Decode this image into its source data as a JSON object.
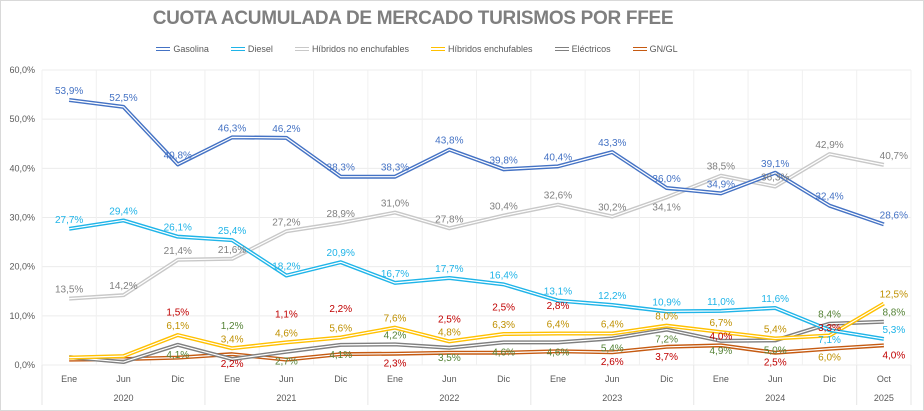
{
  "chart_data": {
    "type": "line",
    "title": "CUOTA ACUMULADA DE MERCADO TURISMOS POR FFEE",
    "xlabel": "",
    "ylabel": "",
    "ylim": [
      0,
      60
    ],
    "yticks": [
      "0,0%",
      "10,0%",
      "20,0%",
      "30,0%",
      "40,0%",
      "50,0%",
      "60,0%"
    ],
    "ytick_values": [
      0,
      10,
      20,
      30,
      40,
      50,
      60
    ],
    "grid": true,
    "legend_position": "top",
    "categories": [
      "Ene",
      "Jun",
      "Dic",
      "Ene",
      "Jun",
      "Dic",
      "Ene",
      "Jun",
      "Dic",
      "Ene",
      "Jun",
      "Dic",
      "Ene",
      "Jun",
      "Dic",
      "Oct"
    ],
    "years": [
      {
        "label": "2020",
        "span": 3
      },
      {
        "label": "2021",
        "span": 3
      },
      {
        "label": "2022",
        "span": 3
      },
      {
        "label": "2023",
        "span": 3
      },
      {
        "label": "2024",
        "span": 3
      },
      {
        "label": "2025",
        "span": 1
      }
    ],
    "series": [
      {
        "name": "Gasolina",
        "color": "#4472c4",
        "label_color": "#4472c4",
        "values": [
          53.9,
          52.5,
          40.8,
          46.3,
          46.2,
          38.3,
          38.3,
          43.8,
          39.8,
          40.4,
          43.3,
          36.0,
          34.9,
          39.1,
          32.4,
          28.6
        ],
        "labels": [
          "53,9%",
          "52,5%",
          "40,8%",
          "46,3%",
          "46,2%",
          "38,3%",
          "38,3%",
          "43,8%",
          "39,8%",
          "40,4%",
          "43,3%",
          "36,0%",
          "34,9%",
          "39,1%",
          "32,4%",
          "28,6%"
        ]
      },
      {
        "name": "Diesel",
        "color": "#1fb4e8",
        "label_color": "#1fb4e8",
        "values": [
          27.7,
          29.4,
          26.1,
          25.4,
          18.2,
          20.9,
          16.7,
          17.7,
          16.4,
          13.1,
          12.2,
          10.9,
          11.0,
          11.6,
          7.1,
          5.3
        ],
        "labels": [
          "27,7%",
          "29,4%",
          "26,1%",
          "25,4%",
          "18,2%",
          "20,9%",
          "16,7%",
          "17,7%",
          "16,4%",
          "13,1%",
          "12,2%",
          "10,9%",
          "11,0%",
          "11,6%",
          "7,1%",
          "5,3%"
        ]
      },
      {
        "name": "Híbridos no enchufables",
        "color": "#c8c8c8",
        "label_color": "#7f7f7f",
        "values": [
          13.5,
          14.2,
          21.4,
          21.6,
          27.2,
          28.9,
          31.0,
          27.8,
          30.4,
          32.6,
          30.2,
          34.1,
          38.5,
          36.3,
          42.9,
          40.7
        ],
        "labels": [
          "13,5%",
          "14,2%",
          "21,4%",
          "21,6%",
          "27,2%",
          "28,9%",
          "31,0%",
          "27,8%",
          "30,4%",
          "32,6%",
          "30,2%",
          "34,1%",
          "38,5%",
          "36,3%",
          "42,9%",
          "40,7%"
        ]
      },
      {
        "name": "Híbridos enchufables",
        "color": "#ffc000",
        "label_color": "#bf9000",
        "values": [
          1.5,
          1.8,
          6.1,
          3.4,
          4.6,
          5.6,
          7.6,
          4.8,
          6.3,
          6.4,
          6.4,
          8.0,
          6.7,
          5.4,
          6.0,
          12.5
        ],
        "labels": [
          "",
          "",
          "6,1%",
          "3,4%",
          "4,6%",
          "5,6%",
          "7,6%",
          "4,8%",
          "6,3%",
          "6,4%",
          "6,4%",
          "8,0%",
          "6,7%",
          "5,4%",
          "6,0%",
          "12,5%"
        ]
      },
      {
        "name": "Eléctricos",
        "color": "#7f7f7f",
        "label_color": "#548235",
        "values": [
          1.6,
          0.6,
          4.1,
          1.2,
          2.7,
          4.1,
          4.2,
          3.5,
          4.6,
          4.6,
          5.4,
          7.2,
          4.9,
          5.0,
          8.4,
          8.8
        ],
        "labels": [
          "",
          "",
          "4,1%",
          "1,2%",
          "2,7%",
          "4,1%",
          "4,2%",
          "3,5%",
          "4,6%",
          "4,6%",
          "5,4%",
          "7,2%",
          "4,9%",
          "5,0%",
          "8,4%",
          "8,8%"
        ]
      },
      {
        "name": "GN/GL",
        "color": "#c55a11",
        "label_color": "#c00000",
        "values": [
          1.1,
          1.2,
          1.5,
          2.2,
          1.1,
          2.2,
          2.3,
          2.5,
          2.5,
          2.8,
          2.6,
          3.7,
          4.0,
          2.5,
          3.3,
          4.0
        ],
        "labels": [
          "",
          "",
          "1,5%",
          "2,2%",
          "1,1%",
          "2,2%",
          "2,3%",
          "2,5%",
          "2,5%",
          "2,8%",
          "2,6%",
          "3,7%",
          "4,0%",
          "2,5%",
          "3,3%",
          "4,0%"
        ]
      }
    ]
  }
}
